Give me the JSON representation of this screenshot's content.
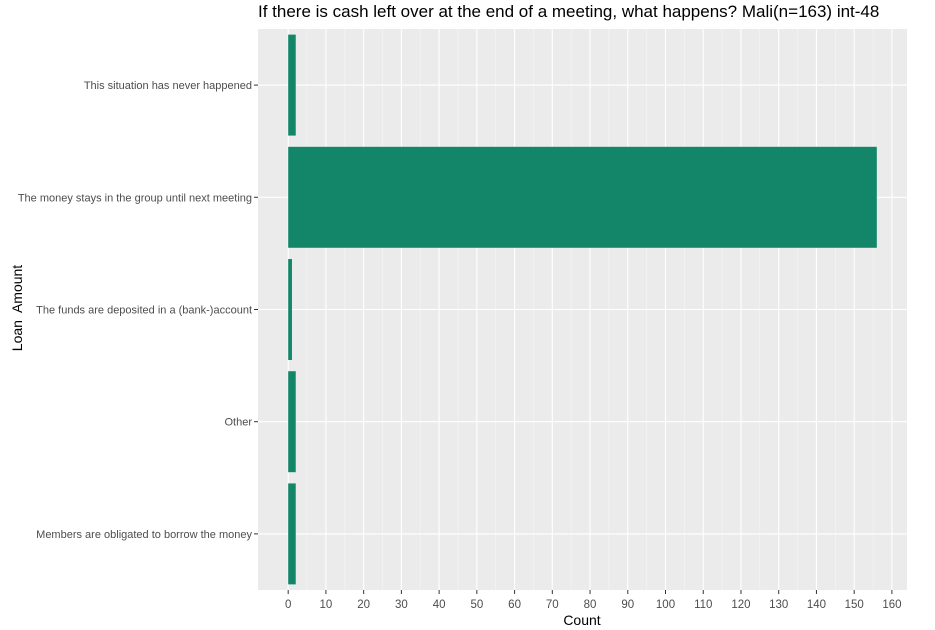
{
  "chart_data": {
    "type": "bar",
    "orientation": "horizontal",
    "title": "If there is cash left over at the end of a meeting, what happens? Mali(n=163) int-48",
    "xlabel": "Count",
    "ylabel": "Loan  Amount",
    "categories": [
      "This situation has never happened",
      "The money stays in the group until next meeting",
      "The funds are deposited in a (bank-)account",
      "Other",
      "Members are obligated to borrow the money"
    ],
    "values": [
      2,
      156,
      1,
      2,
      2
    ],
    "xlim": [
      -8,
      164
    ],
    "xticks": [
      0,
      10,
      20,
      30,
      40,
      50,
      60,
      70,
      80,
      90,
      100,
      110,
      120,
      130,
      140,
      150,
      160
    ],
    "grid": true,
    "colors": {
      "bar": "#138669",
      "panel_background": "#ebebeb",
      "grid_major": "#ffffff",
      "grid_minor": "#f5f5f5"
    }
  }
}
